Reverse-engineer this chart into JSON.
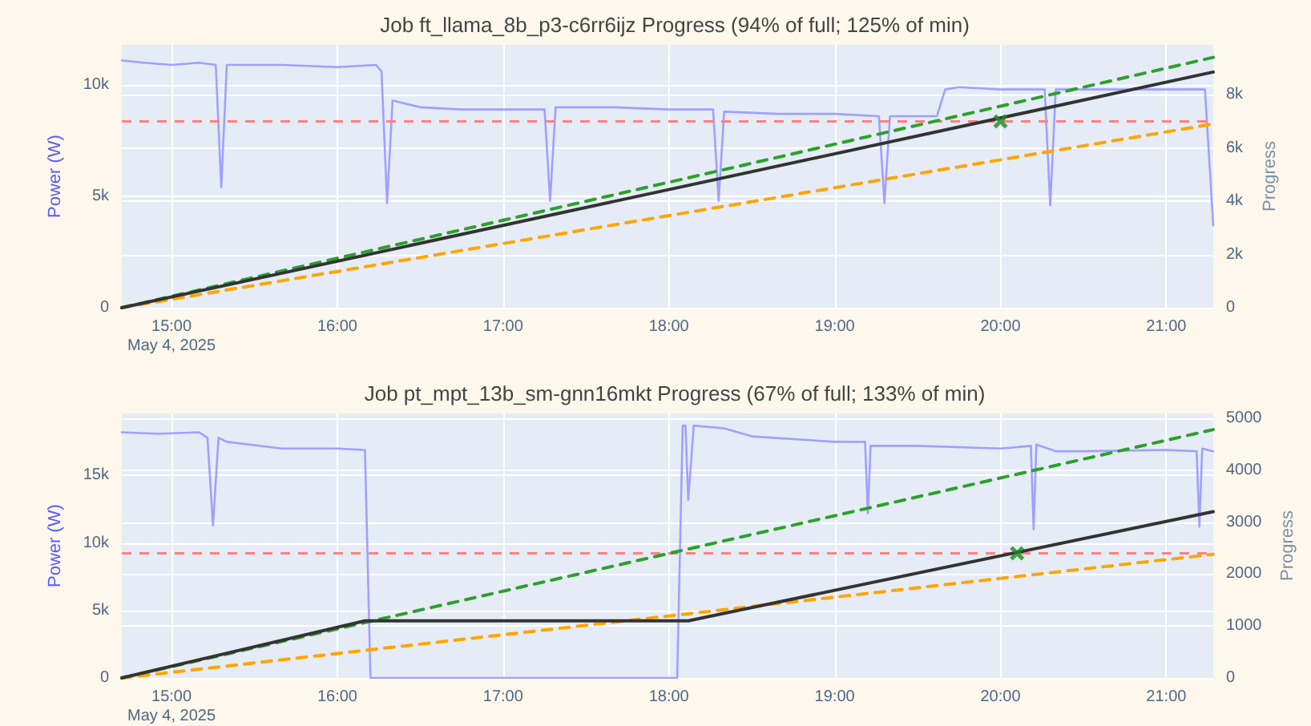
{
  "chart_data": [
    {
      "type": "line",
      "title": "Job ft_llama_8b_p3-c6rr6ijz Progress (94% of full; 125% of min)",
      "ylabel": "Power (W)",
      "y2label": "Progress",
      "grid": true,
      "xlim": [
        "2025-05-04T14:42",
        "2025-05-04T21:17"
      ],
      "xticks": [
        {
          "value": "2025-05-04T15:00",
          "label": "15:00\nMay 4, 2025"
        },
        {
          "value": "2025-05-04T16:00",
          "label": "16:00"
        },
        {
          "value": "2025-05-04T17:00",
          "label": "17:00"
        },
        {
          "value": "2025-05-04T18:00",
          "label": "18:00"
        },
        {
          "value": "2025-05-04T19:00",
          "label": "19:00"
        },
        {
          "value": "2025-05-04T20:00",
          "label": "20:00"
        },
        {
          "value": "2025-05-04T21:00",
          "label": "21:00"
        }
      ],
      "ylim": [
        0,
        11800
      ],
      "yticks": [
        0,
        {
          "value": 5000,
          "label": "5k"
        },
        {
          "value": 10000,
          "label": "10k"
        }
      ],
      "y2lim": [
        0,
        9870
      ],
      "y2ticks": [
        0,
        {
          "value": 2000,
          "label": "2k"
        },
        {
          "value": 4000,
          "label": "4k"
        },
        {
          "value": 6000,
          "label": "6k"
        },
        {
          "value": 8000,
          "label": "8k"
        }
      ],
      "ref_lines": [
        {
          "axis": "y2",
          "value": 7000,
          "color": "#ff7f7f",
          "line_style": "dashed"
        }
      ],
      "series": [
        {
          "color": "#a0a0ff",
          "x": [
            "2025-05-04T14:42",
            "2025-05-04T14:50",
            "2025-05-04T15:00",
            "2025-05-04T15:10",
            "2025-05-04T15:16",
            "2025-05-04T15:18",
            "2025-05-04T15:20",
            "2025-05-04T15:40",
            "2025-05-04T16:00",
            "2025-05-04T16:14",
            "2025-05-04T16:16",
            "2025-05-04T16:18",
            "2025-05-04T16:20",
            "2025-05-04T16:30",
            "2025-05-04T16:45",
            "2025-05-04T17:00",
            "2025-05-04T17:15",
            "2025-05-04T17:17",
            "2025-05-04T17:19",
            "2025-05-04T17:40",
            "2025-05-04T18:00",
            "2025-05-04T18:16",
            "2025-05-04T18:18",
            "2025-05-04T18:20",
            "2025-05-04T18:40",
            "2025-05-04T19:00",
            "2025-05-04T19:16",
            "2025-05-04T19:18",
            "2025-05-04T19:20",
            "2025-05-04T19:37",
            "2025-05-04T19:40",
            "2025-05-04T19:45",
            "2025-05-04T20:00",
            "2025-05-04T20:16",
            "2025-05-04T20:18",
            "2025-05-04T20:20",
            "2025-05-04T20:40",
            "2025-05-04T21:00",
            "2025-05-04T21:14",
            "2025-05-04T21:17"
          ],
          "values": [
            11100,
            11000,
            10900,
            11000,
            10900,
            5400,
            10900,
            10900,
            10800,
            10900,
            10600,
            4700,
            9300,
            9000,
            8900,
            8900,
            8900,
            4800,
            9000,
            9000,
            8900,
            8900,
            4800,
            8800,
            8700,
            8700,
            8600,
            4700,
            8600,
            8600,
            9800,
            9900,
            9800,
            9800,
            4600,
            9800,
            9800,
            9800,
            9800,
            3700
          ]
        },
        {
          "color": "#2ca02c",
          "axis": "y2",
          "line_style": "dashed",
          "x": [
            "2025-05-04T14:42",
            "2025-05-04T21:17"
          ],
          "values": [
            0,
            9400
          ]
        },
        {
          "color": "#ffa500",
          "axis": "y2",
          "line_style": "dashed",
          "x": [
            "2025-05-04T14:42",
            "2025-05-04T21:17"
          ],
          "values": [
            0,
            6900
          ]
        },
        {
          "color": "#333333",
          "axis": "y2",
          "line_style": "solid",
          "x": [
            "2025-05-04T14:42",
            "2025-05-04T21:17"
          ],
          "values": [
            0,
            8850
          ]
        },
        {
          "type": "scatter",
          "color": "#1a8a1a",
          "axis": "y2",
          "marker": "cross",
          "x": [
            "2025-05-04T20:00"
          ],
          "values": [
            7000
          ]
        }
      ]
    },
    {
      "type": "line",
      "title": "Job pt_mpt_13b_sm-gnn16mkt Progress (67% of full; 133% of min)",
      "ylabel": "Power (W)",
      "y2label": "Progress",
      "grid": true,
      "xlim": [
        "2025-05-04T14:42",
        "2025-05-04T21:17"
      ],
      "xticks": [
        {
          "value": "2025-05-04T15:00",
          "label": "15:00\nMay 4, 2025"
        },
        {
          "value": "2025-05-04T16:00",
          "label": "16:00"
        },
        {
          "value": "2025-05-04T17:00",
          "label": "17:00"
        },
        {
          "value": "2025-05-04T18:00",
          "label": "18:00"
        },
        {
          "value": "2025-05-04T19:00",
          "label": "19:00"
        },
        {
          "value": "2025-05-04T20:00",
          "label": "20:00"
        },
        {
          "value": "2025-05-04T21:00",
          "label": "21:00"
        }
      ],
      "ylim": [
        0,
        19600
      ],
      "yticks": [
        0,
        {
          "value": 5000,
          "label": "5k"
        },
        {
          "value": 10000,
          "label": "10k"
        },
        {
          "value": 15000,
          "label": "15k"
        }
      ],
      "y2lim": [
        0,
        5090
      ],
      "y2ticks": [
        0,
        1000,
        2000,
        3000,
        4000,
        5000
      ],
      "ref_lines": [
        {
          "axis": "y2",
          "value": 2400,
          "color": "#ff7f7f",
          "line_style": "dashed"
        }
      ],
      "series": [
        {
          "color": "#a0a0ff",
          "x": [
            "2025-05-04T14:42",
            "2025-05-04T14:55",
            "2025-05-04T15:10",
            "2025-05-04T15:13",
            "2025-05-04T15:15",
            "2025-05-04T15:17",
            "2025-05-04T15:20",
            "2025-05-04T15:40",
            "2025-05-04T16:00",
            "2025-05-04T16:10",
            "2025-05-04T16:12",
            "2025-05-04T18:03",
            "2025-05-04T18:05",
            "2025-05-04T18:06",
            "2025-05-04T18:07",
            "2025-05-04T18:09",
            "2025-05-04T18:20",
            "2025-05-04T18:30",
            "2025-05-04T19:00",
            "2025-05-04T19:11",
            "2025-05-04T19:12",
            "2025-05-04T19:13",
            "2025-05-04T19:30",
            "2025-05-04T20:00",
            "2025-05-04T20:11",
            "2025-05-04T20:12",
            "2025-05-04T20:13",
            "2025-05-04T20:20",
            "2025-05-04T20:30",
            "2025-05-04T21:00",
            "2025-05-04T21:11",
            "2025-05-04T21:12",
            "2025-05-04T21:13",
            "2025-05-04T21:17"
          ],
          "values": [
            18200,
            18100,
            18200,
            17800,
            11300,
            17800,
            17500,
            17000,
            17000,
            16900,
            0,
            0,
            18700,
            18700,
            13200,
            18700,
            18500,
            17900,
            17500,
            17500,
            12200,
            17200,
            17200,
            17000,
            17200,
            11000,
            17300,
            16800,
            16800,
            16900,
            16800,
            11200,
            17000,
            16800
          ]
        },
        {
          "color": "#2ca02c",
          "axis": "y2",
          "line_style": "dashed",
          "x": [
            "2025-05-04T14:42",
            "2025-05-04T21:17"
          ],
          "values": [
            0,
            4780
          ]
        },
        {
          "color": "#ffa500",
          "axis": "y2",
          "line_style": "dashed",
          "x": [
            "2025-05-04T14:42",
            "2025-05-04T21:17"
          ],
          "values": [
            0,
            2380
          ]
        },
        {
          "color": "#333333",
          "axis": "y2",
          "line_style": "solid",
          "x": [
            "2025-05-04T14:42",
            "2025-05-04T16:10",
            "2025-05-04T18:07",
            "2025-05-04T21:17"
          ],
          "values": [
            0,
            1100,
            1100,
            3200
          ]
        },
        {
          "type": "scatter",
          "color": "#1a8a1a",
          "axis": "y2",
          "marker": "cross",
          "x": [
            "2025-05-04T20:06"
          ],
          "values": [
            2400
          ]
        }
      ]
    }
  ]
}
